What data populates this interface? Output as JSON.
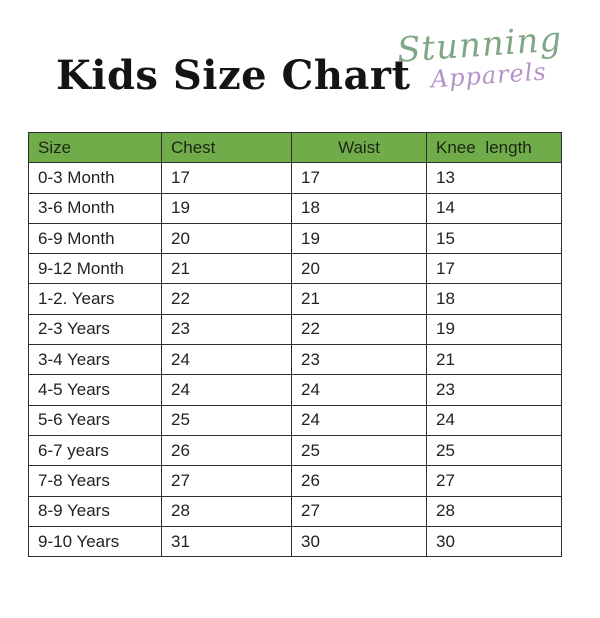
{
  "title": "Kids Size Chart",
  "logo": {
    "line1": "Stunning",
    "line2": "Apparels"
  },
  "colors": {
    "page_bg": "#ffffff",
    "title_color": "#141414",
    "logo_green": "#7fa685",
    "logo_purple": "#b494c6",
    "header_bg": "#71ac4b",
    "border_color": "#2e2e2e"
  },
  "chart_data": {
    "type": "table",
    "title": "Kids Size Chart",
    "columns": [
      "Size",
      "Chest",
      "Waist",
      "Knee length"
    ],
    "rows": [
      [
        "0-3 Month",
        "17",
        "17",
        "13"
      ],
      [
        "3-6 Month",
        "19",
        "18",
        "14"
      ],
      [
        "6-9 Month",
        "20",
        "19",
        "15"
      ],
      [
        "9-12 Month",
        "21",
        "20",
        "17"
      ],
      [
        "1-2. Years",
        "22",
        "21",
        "18"
      ],
      [
        "2-3 Years",
        "23",
        "22",
        "19"
      ],
      [
        "3-4 Years",
        "24",
        "23",
        "21"
      ],
      [
        "4-5 Years",
        "24",
        "24",
        "23"
      ],
      [
        "5-6 Years",
        "25",
        "24",
        "24"
      ],
      [
        "6-7 years",
        "26",
        "25",
        "25"
      ],
      [
        "7-8 Years",
        "27",
        "26",
        "27"
      ],
      [
        "8-9 Years",
        "28",
        "27",
        "28"
      ],
      [
        "9-10 Years",
        "31",
        "30",
        "30"
      ]
    ],
    "layout": {
      "header_row_background": "#71ac4b",
      "grid": true
    }
  }
}
